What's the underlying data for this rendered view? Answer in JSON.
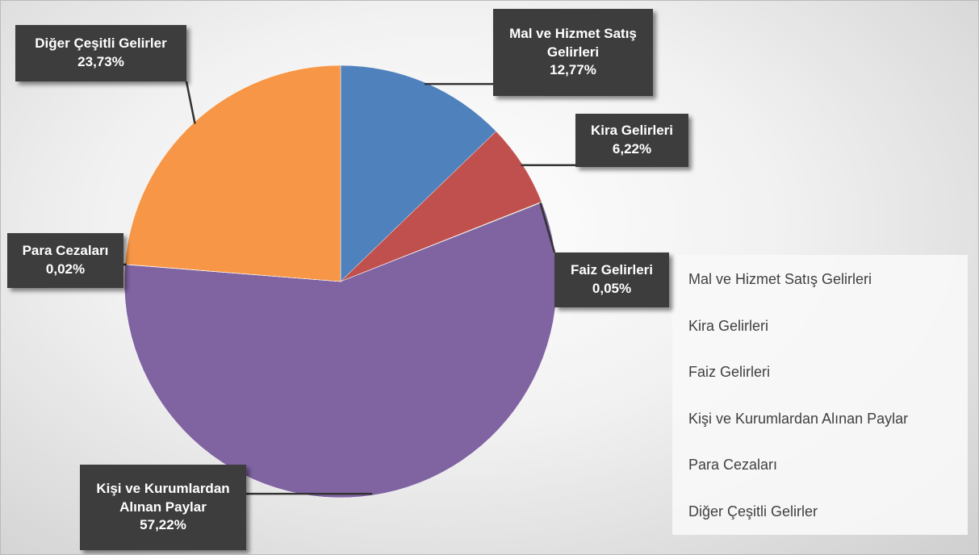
{
  "chart_data": {
    "type": "pie",
    "categories": [
      "Mal ve Hizmet Satış Gelirleri",
      "Kira Gelirleri",
      "Faiz Gelirleri",
      "Kişi ve Kurumlardan Alınan Paylar",
      "Para Cezaları",
      "Diğer Çeşitli Gelirler"
    ],
    "values": [
      12.77,
      6.22,
      0.05,
      57.22,
      0.02,
      23.73
    ],
    "value_labels": [
      "12,77%",
      "6,22%",
      "0,05%",
      "57,22%",
      "0,02%",
      "23,73%"
    ],
    "colors": [
      "#4f81bd",
      "#c0504d",
      "#9bbb59",
      "#8064a2",
      "#4bacc6",
      "#f79646"
    ],
    "legend": "right"
  }
}
